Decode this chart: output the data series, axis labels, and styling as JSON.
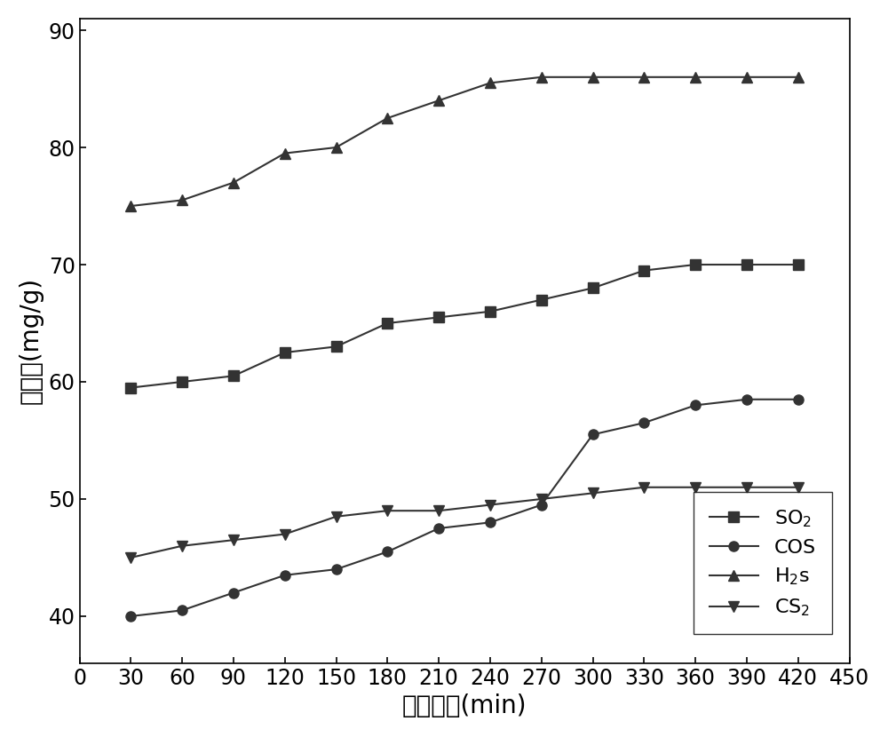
{
  "x": [
    30,
    60,
    90,
    120,
    150,
    180,
    210,
    240,
    270,
    300,
    330,
    360,
    390,
    420
  ],
  "SO2": [
    59.5,
    60.0,
    60.5,
    62.5,
    63.0,
    65.0,
    65.5,
    66.0,
    67.0,
    68.0,
    69.5,
    70.0,
    70.0,
    70.0
  ],
  "COS": [
    40.0,
    40.5,
    42.0,
    43.5,
    44.0,
    45.5,
    47.5,
    48.0,
    49.5,
    55.5,
    56.5,
    58.0,
    58.5,
    58.5
  ],
  "H2s": [
    75.0,
    75.5,
    77.0,
    79.5,
    80.0,
    82.5,
    84.0,
    85.5,
    86.0,
    86.0,
    86.0,
    86.0,
    86.0,
    86.0
  ],
  "CS2": [
    45.0,
    46.0,
    46.5,
    47.0,
    48.5,
    49.0,
    49.0,
    49.5,
    50.0,
    50.5,
    51.0,
    51.0,
    51.0,
    51.0
  ],
  "xlabel": "吸附时间(min)",
  "ylabel": "吸附量(mg/g)",
  "ylim": [
    36,
    91
  ],
  "xlim": [
    0,
    450
  ],
  "xticks": [
    0,
    30,
    60,
    90,
    120,
    150,
    180,
    210,
    240,
    270,
    300,
    330,
    360,
    390,
    420,
    450
  ],
  "yticks": [
    40,
    50,
    60,
    70,
    80,
    90
  ],
  "line_color": "#333333",
  "legend_SO2": "SO$_2$",
  "legend_COS": "COS",
  "legend_H2s": "H$_2$s",
  "legend_CS2": "CS$_2$",
  "linewidth": 1.5,
  "markersize": 8,
  "background_color": "#ffffff"
}
